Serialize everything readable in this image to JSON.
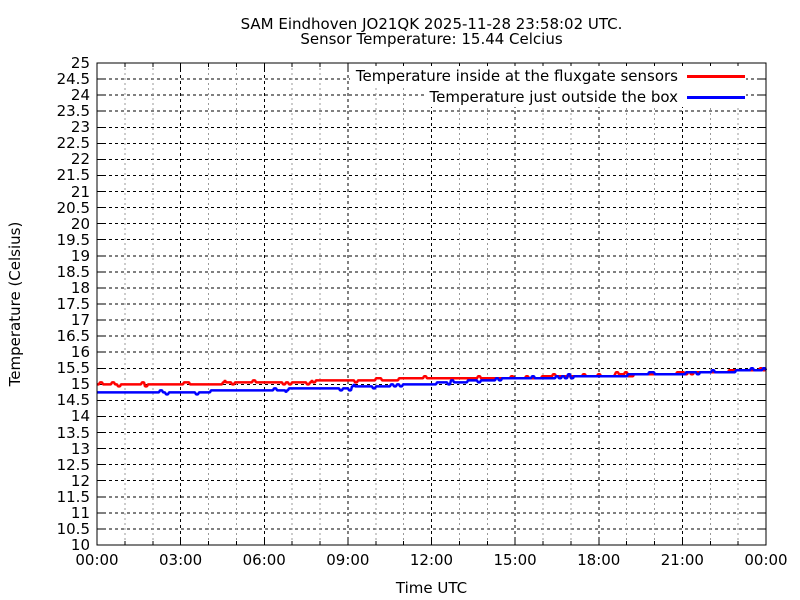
{
  "chart_data": {
    "type": "line",
    "title": "SAM Eindhoven JO21QK 2025-11-28 23:58:02 UTC.",
    "subtitle": "Sensor Temperature: 15.44 Celcius",
    "xlabel": "Time UTC",
    "ylabel": "Temperature (Celsius)",
    "xlim": [
      0,
      24
    ],
    "ylim": [
      10,
      25
    ],
    "grid": true,
    "legend_position": "top-right-inside",
    "xtick_hours": [
      0,
      3,
      6,
      9,
      12,
      15,
      18,
      21,
      24
    ],
    "xtick_labels": [
      "00:00",
      "03:00",
      "06:00",
      "09:00",
      "12:00",
      "15:00",
      "18:00",
      "21:00",
      "00:00"
    ],
    "minor_xtick_interval_hours": 1,
    "ytick_values": [
      25,
      24.5,
      24,
      23.5,
      23,
      22.5,
      22,
      21.5,
      21,
      20.5,
      20,
      19.5,
      19,
      18.5,
      18,
      17.5,
      17,
      16.5,
      16,
      15.5,
      15,
      14.5,
      14,
      13.5,
      13,
      12.5,
      12,
      11.5,
      11,
      10.5,
      10
    ],
    "ytick_labels": [
      "25",
      "24.5",
      "24",
      "23.5",
      "23",
      "22.5",
      "22",
      "21.5",
      "21",
      "20.5",
      "20",
      "19.5",
      "19",
      "18.5",
      "18",
      "17.5",
      "17",
      "16.5",
      "16",
      "15.5",
      "15",
      "14.5",
      "14",
      "13.5",
      "13",
      "12.5",
      "12",
      "11.5",
      "11",
      "10.5",
      "10"
    ],
    "x_hours": [
      0,
      1,
      2,
      3,
      4,
      5,
      6,
      7,
      8,
      9,
      10,
      11,
      12,
      13,
      14,
      15,
      16,
      17,
      18,
      19,
      20,
      21,
      22,
      23,
      24
    ],
    "series": [
      {
        "name": "Temperature inside at the fluxgate sensors",
        "color": "#ff0000",
        "values": [
          15.0,
          15.0,
          15.0,
          15.01,
          15.02,
          15.04,
          15.06,
          15.08,
          15.1,
          15.12,
          15.14,
          15.16,
          15.18,
          15.19,
          15.2,
          15.2,
          15.22,
          15.24,
          15.27,
          15.29,
          15.32,
          15.35,
          15.38,
          15.42,
          15.45
        ]
      },
      {
        "name": "Temperature just outside the box",
        "color": "#0000ff",
        "values": [
          14.76,
          14.76,
          14.76,
          14.77,
          14.78,
          14.8,
          14.82,
          14.85,
          14.88,
          14.9,
          14.93,
          14.97,
          15.02,
          15.08,
          15.13,
          15.18,
          15.21,
          15.23,
          15.26,
          15.28,
          15.31,
          15.34,
          15.37,
          15.41,
          15.44
        ]
      }
    ],
    "quantization_step_celsius": 0.0625,
    "colors": {
      "major_grid": "#000000",
      "minor_grid": "#9a9a9a",
      "border": "#000000",
      "background": "#ffffff"
    }
  }
}
